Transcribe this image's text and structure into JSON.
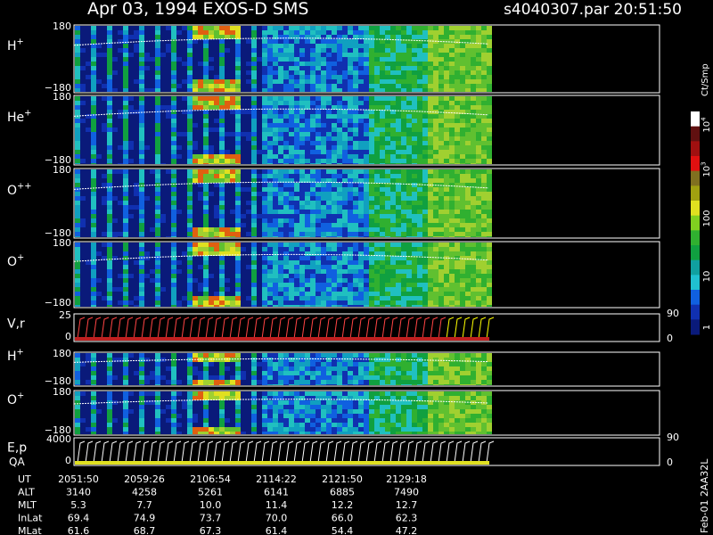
{
  "header": {
    "title": "Apr 03, 1994   EXOS-D SMS",
    "file": "s4040307.par  20:51:50"
  },
  "panels": [
    {
      "label": "H",
      "sup": "+",
      "ticks_left": [
        "180",
        "−180"
      ],
      "ticks_right": []
    },
    {
      "label": "He",
      "sup": "+",
      "ticks_left": [
        "180",
        "−180"
      ],
      "ticks_right": []
    },
    {
      "label": "O",
      "sup": "++",
      "ticks_left": [
        "180",
        "−180"
      ],
      "ticks_right": []
    },
    {
      "label": "O",
      "sup": "+",
      "ticks_left": [
        "180",
        "−180"
      ],
      "ticks_right": []
    },
    {
      "label": "V,r",
      "sup": "",
      "ticks_left": [
        "25",
        "0"
      ],
      "ticks_right": [
        "90",
        "0"
      ]
    },
    {
      "label": "H",
      "sup": "+",
      "ticks_left": [
        "180",
        "−180"
      ],
      "ticks_right": []
    },
    {
      "label": "O",
      "sup": "+",
      "ticks_left": [
        "180",
        "−180"
      ],
      "ticks_right": []
    },
    {
      "label": "E,p",
      "sup": "",
      "ticks_left": [
        "4000",
        "0"
      ],
      "ticks_right": [
        "90",
        "0"
      ]
    }
  ],
  "qa_label": "QA",
  "colorbar": {
    "unit": "Ct/Smp",
    "ticks": [
      {
        "base": "10",
        "sup": "4"
      },
      {
        "base": "10",
        "sup": "3"
      },
      {
        "base": "100",
        "sup": ""
      },
      {
        "base": "10",
        "sup": ""
      },
      {
        "base": "1",
        "sup": ""
      }
    ]
  },
  "side_label": "Feb-01 2AA32L",
  "table": {
    "rows": [
      [
        "UT",
        "2051:50",
        "2059:26",
        "2106:54",
        "2114:22",
        "2121:50",
        "2129:18"
      ],
      [
        "ALT",
        "3140",
        "4258",
        "5261",
        "6141",
        "6885",
        "7490"
      ],
      [
        "MLT",
        "5.3",
        "7.7",
        "10.0",
        "11.4",
        "12.2",
        "12.7"
      ],
      [
        "InLat",
        "69.4",
        "74.9",
        "73.7",
        "70.0",
        "66.0",
        "62.3"
      ],
      [
        "MLat",
        "61.6",
        "68.7",
        "67.3",
        "61.4",
        "54.4",
        "47.2"
      ]
    ]
  }
}
